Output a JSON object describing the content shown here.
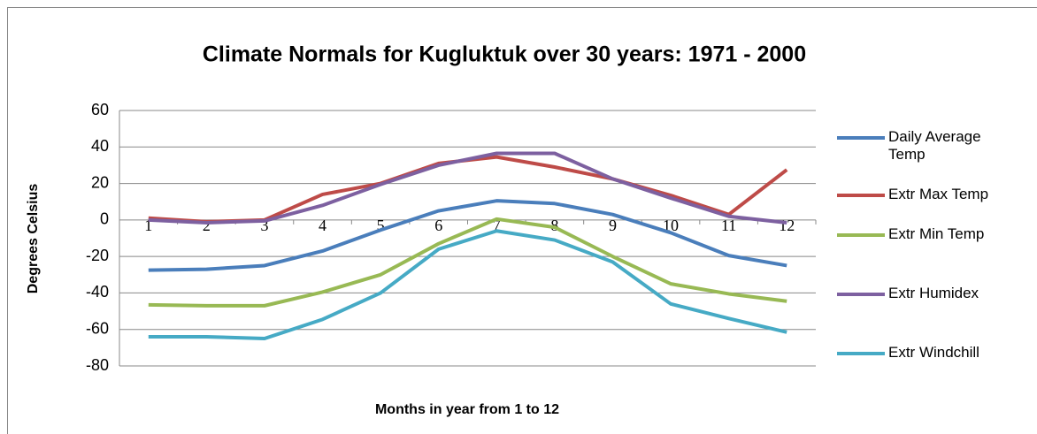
{
  "chart_data": {
    "type": "line",
    "title": "Climate Normals for Kugluktuk over 30 years: 1971 - 2000",
    "x_label": "Months in year from 1 to 12",
    "y_label": "Degrees Celsius",
    "categories": [
      "1",
      "2",
      "3",
      "4",
      "5",
      "6",
      "7",
      "8",
      "9",
      "10",
      "11",
      "12"
    ],
    "series": [
      {
        "name": "Daily Average Temp",
        "color": "#4a7ebb",
        "values": [
          -27.5,
          -27,
          -25,
          -17,
          -5.5,
          5,
          10.5,
          9,
          3,
          -7,
          -19.5,
          -25
        ]
      },
      {
        "name": "Extr Max Temp",
        "color": "#be4b48",
        "values": [
          1,
          -1,
          0,
          14,
          20,
          31,
          34.5,
          29,
          22.5,
          13.5,
          3,
          27.5
        ]
      },
      {
        "name": "Extr Min Temp",
        "color": "#98b954",
        "values": [
          -46.5,
          -47,
          -47,
          -39.5,
          -30,
          -13,
          0.5,
          -4,
          -20,
          -35,
          -40.5,
          -44.5
        ]
      },
      {
        "name": "Extr Humidex",
        "color": "#7d60a0",
        "values": [
          0,
          -1.5,
          -0.5,
          8,
          19.5,
          30,
          36.5,
          36.5,
          22.5,
          12,
          2,
          -1.5
        ]
      },
      {
        "name": "Extr Windchill",
        "color": "#46aac5",
        "values": [
          -64,
          -64,
          -65,
          -54.5,
          -40,
          -16,
          -6,
          -11,
          -23,
          -46,
          -54,
          -61.5
        ]
      }
    ],
    "ylim": [
      -80,
      60
    ],
    "yticks": [
      -80,
      -60,
      -40,
      -20,
      0,
      20,
      40,
      60
    ],
    "grid": true,
    "legend": "right"
  }
}
